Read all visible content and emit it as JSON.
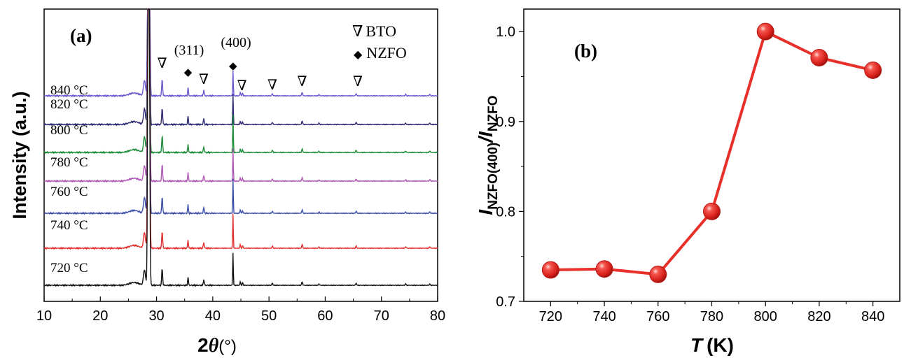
{
  "figure": {
    "panel_a_label": "(a)",
    "panel_b_label": "(b)"
  },
  "chart_data": [
    {
      "type": "line",
      "panel": "(a)",
      "xlabel_main": "2",
      "xlabel_symbol": "θ",
      "xlabel_unit": "(°)",
      "ylabel": "Intensity (a.u.)",
      "xlim": [
        10,
        80
      ],
      "xticks": [
        10,
        20,
        30,
        40,
        50,
        60,
        70,
        80
      ],
      "legend": [
        {
          "symbol": "∇",
          "label": "BTO"
        },
        {
          "symbol": "◆",
          "label": "NZFO"
        }
      ],
      "annotations": [
        {
          "text": "(311)",
          "x": 35.6
        },
        {
          "text": "(400)",
          "x": 43.6
        }
      ],
      "nzfo_markers": [
        35.6,
        43.6
      ],
      "bto_markers": [
        31.0,
        38.4,
        45.2,
        50.6,
        55.9,
        65.8
      ],
      "series": [
        {
          "name": "840 °C",
          "color": "#6a5acd",
          "nzfo400": 0.4
        },
        {
          "name": "820 °C",
          "color": "#2e2a72",
          "nzfo400": 0.48
        },
        {
          "name": "800 °C",
          "color": "#1e8c3a",
          "nzfo400": 0.6
        },
        {
          "name": "780 °C",
          "color": "#b05ab8",
          "nzfo400": 0.52
        },
        {
          "name": "760 °C",
          "color": "#3b4fa8",
          "nzfo400": 0.55
        },
        {
          "name": "740 °C",
          "color": "#e2302e",
          "nzfo400": 0.55
        },
        {
          "name": "720 °C",
          "color": "#111111",
          "nzfo400": 0.52
        }
      ]
    },
    {
      "type": "line",
      "panel": "(b)",
      "xlabel_symbol": "T",
      "xlabel_unit": "(K)",
      "ylabel_prefix": "I",
      "ylabel_sub1": "NZFO(400)",
      "ylabel_sep": "/I",
      "ylabel_sub2": "NZFO",
      "xlim": [
        710,
        850
      ],
      "ylim": [
        0.7,
        1.025
      ],
      "xticks": [
        720,
        740,
        760,
        780,
        800,
        820,
        840
      ],
      "yticks": [
        0.7,
        0.8,
        0.9,
        1.0
      ],
      "ytick_labels": [
        "0.7",
        "0.8",
        "0.9",
        "1.0"
      ],
      "x": [
        720,
        740,
        760,
        780,
        800,
        820,
        840
      ],
      "y": [
        0.735,
        0.736,
        0.73,
        0.8,
        1.0,
        0.971,
        0.957
      ],
      "color": "#e8302a"
    }
  ]
}
